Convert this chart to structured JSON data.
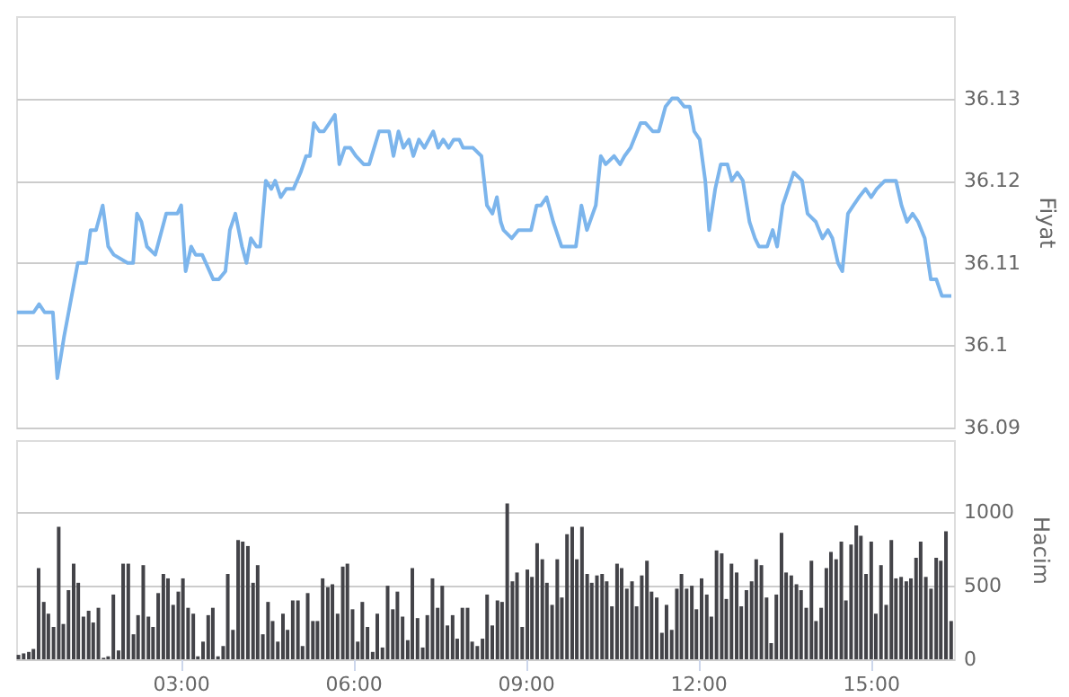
{
  "chart_data": [
    {
      "type": "line",
      "ylabel": "Fiyat",
      "xlim": [
        0.14,
        16.45
      ],
      "ylim": [
        36.09,
        36.14
      ],
      "yticks": [
        36.09,
        36.1,
        36.11,
        36.12,
        36.13
      ],
      "grid": "y",
      "tick_labels": "y",
      "line_style": "solid",
      "marker": "none",
      "series": [
        {
          "color": "#7cb5ec",
          "x": [
            0.154,
            0.347,
            0.443,
            0.539,
            0.635,
            0.779,
            0.856,
            0.972,
            1.212,
            1.356,
            1.433,
            1.529,
            1.645,
            1.741,
            1.837,
            2.077,
            2.174,
            2.241,
            2.318,
            2.414,
            2.558,
            2.75,
            2.943,
            3.01,
            3.087,
            3.183,
            3.26,
            3.375,
            3.568,
            3.664,
            3.779,
            3.856,
            3.952,
            4.068,
            4.145,
            4.222,
            4.318,
            4.385,
            4.481,
            4.577,
            4.645,
            4.741,
            4.837,
            4.962,
            5.087,
            5.183,
            5.25,
            5.318,
            5.414,
            5.491,
            5.587,
            5.683,
            5.76,
            5.856,
            5.952,
            6.048,
            6.183,
            6.279,
            6.452,
            6.548,
            6.625,
            6.702,
            6.789,
            6.875,
            6.971,
            7.048,
            7.144,
            7.24,
            7.394,
            7.481,
            7.567,
            7.663,
            7.75,
            7.846,
            7.913,
            7.99,
            8.086,
            8.231,
            8.327,
            8.423,
            8.5,
            8.567,
            8.615,
            8.759,
            8.874,
            9.095,
            9.191,
            9.268,
            9.364,
            9.48,
            9.624,
            9.816,
            9.874,
            9.97,
            10.066,
            10.22,
            10.307,
            10.393,
            10.538,
            10.643,
            10.72,
            10.826,
            10.999,
            11.086,
            11.211,
            11.316,
            11.432,
            11.547,
            11.643,
            11.759,
            11.855,
            11.932,
            12.028,
            12.124,
            12.191,
            12.297,
            12.393,
            12.509,
            12.585,
            12.682,
            12.778,
            12.893,
            12.989,
            13.057,
            13.201,
            13.297,
            13.374,
            13.47,
            13.566,
            13.662,
            13.807,
            13.903,
            14.047,
            14.162,
            14.258,
            14.335,
            14.432,
            14.508,
            14.605,
            14.701,
            14.797,
            14.912,
            15.009,
            15.105,
            15.249,
            15.374,
            15.441,
            15.537,
            15.633,
            15.73,
            15.826,
            15.941,
            16.047,
            16.143,
            16.239,
            16.403
          ],
          "values": [
            36.104,
            36.104,
            36.104,
            36.105,
            36.104,
            36.104,
            36.096,
            36.101,
            36.11,
            36.11,
            36.114,
            36.114,
            36.117,
            36.112,
            36.111,
            36.11,
            36.11,
            36.116,
            36.115,
            36.112,
            36.111,
            36.116,
            36.116,
            36.117,
            36.109,
            36.112,
            36.111,
            36.111,
            36.108,
            36.108,
            36.109,
            36.114,
            36.116,
            36.112,
            36.11,
            36.113,
            36.112,
            36.112,
            36.12,
            36.119,
            36.12,
            36.118,
            36.119,
            36.119,
            36.121,
            36.123,
            36.123,
            36.127,
            36.126,
            36.126,
            36.127,
            36.128,
            36.122,
            36.124,
            36.124,
            36.123,
            36.122,
            36.122,
            36.126,
            36.126,
            36.126,
            36.123,
            36.126,
            36.124,
            36.125,
            36.123,
            36.125,
            36.124,
            36.126,
            36.124,
            36.125,
            36.124,
            36.125,
            36.125,
            36.124,
            36.124,
            36.124,
            36.123,
            36.117,
            36.116,
            36.118,
            36.115,
            36.114,
            36.113,
            36.114,
            36.114,
            36.117,
            36.117,
            36.118,
            36.115,
            36.112,
            36.112,
            36.112,
            36.117,
            36.114,
            36.117,
            36.123,
            36.122,
            36.123,
            36.122,
            36.123,
            36.124,
            36.127,
            36.127,
            36.126,
            36.126,
            36.129,
            36.13,
            36.13,
            36.129,
            36.129,
            36.126,
            36.125,
            36.12,
            36.114,
            36.119,
            36.122,
            36.122,
            36.12,
            36.121,
            36.12,
            36.115,
            36.113,
            36.112,
            36.112,
            36.114,
            36.112,
            36.117,
            36.119,
            36.121,
            36.12,
            36.116,
            36.115,
            36.113,
            36.114,
            36.113,
            36.11,
            36.109,
            36.116,
            36.117,
            36.118,
            36.119,
            36.118,
            36.119,
            36.12,
            36.12,
            36.12,
            36.117,
            36.115,
            36.116,
            36.115,
            36.113,
            36.108,
            36.108,
            36.106,
            36.106
          ]
        }
      ]
    },
    {
      "type": "bar",
      "ylabel": "Hacim",
      "xlim": [
        0.14,
        16.45
      ],
      "ylim": [
        0,
        1490
      ],
      "yticks": [
        0,
        500,
        1000
      ],
      "grid": "y",
      "xticks": [
        {
          "value": 3,
          "label": "03:00"
        },
        {
          "value": 6,
          "label": "06:00"
        },
        {
          "value": 9,
          "label": "09:00"
        },
        {
          "value": 12,
          "label": "12:00"
        },
        {
          "value": 15,
          "label": "15:00"
        }
      ],
      "series": [
        {
          "color": "#434348",
          "x": [
            0.18,
            0.27,
            0.36,
            0.44,
            0.53,
            0.62,
            0.7,
            0.79,
            0.88,
            0.96,
            1.05,
            1.14,
            1.22,
            1.31,
            1.4,
            1.48,
            1.57,
            1.66,
            1.74,
            1.83,
            1.92,
            2.0,
            2.09,
            2.18,
            2.26,
            2.35,
            2.44,
            2.52,
            2.61,
            2.7,
            2.78,
            2.87,
            2.96,
            3.04,
            3.13,
            3.22,
            3.3,
            3.39,
            3.48,
            3.56,
            3.65,
            3.74,
            3.82,
            3.91,
            4.0,
            4.08,
            4.17,
            4.26,
            4.34,
            4.43,
            4.52,
            4.6,
            4.69,
            4.78,
            4.86,
            4.95,
            5.04,
            5.12,
            5.21,
            5.3,
            5.38,
            5.47,
            5.56,
            5.64,
            5.73,
            5.82,
            5.9,
            5.99,
            6.08,
            6.16,
            6.25,
            6.34,
            6.42,
            6.51,
            6.6,
            6.69,
            6.77,
            6.86,
            6.95,
            7.03,
            7.12,
            7.21,
            7.29,
            7.38,
            7.47,
            7.55,
            7.64,
            7.73,
            7.81,
            7.9,
            7.99,
            8.07,
            8.16,
            8.25,
            8.33,
            8.42,
            8.51,
            8.59,
            8.68,
            8.77,
            8.85,
            8.94,
            9.03,
            9.11,
            9.2,
            9.29,
            9.37,
            9.46,
            9.55,
            9.63,
            9.72,
            9.81,
            9.89,
            9.98,
            10.07,
            10.15,
            10.24,
            10.33,
            10.41,
            10.5,
            10.59,
            10.67,
            10.76,
            10.85,
            10.93,
            11.02,
            11.11,
            11.19,
            11.28,
            11.37,
            11.45,
            11.54,
            11.63,
            11.71,
            11.8,
            11.89,
            11.97,
            12.06,
            12.15,
            12.23,
            12.32,
            12.41,
            12.49,
            12.58,
            12.67,
            12.75,
            12.84,
            12.93,
            13.01,
            13.1,
            13.19,
            13.27,
            13.36,
            13.45,
            13.53,
            13.62,
            13.71,
            13.79,
            13.88,
            13.97,
            14.05,
            14.14,
            14.23,
            14.31,
            14.4,
            14.49,
            14.57,
            14.66,
            14.75,
            14.83,
            14.92,
            15.01,
            15.09,
            15.18,
            15.27,
            15.36,
            15.44,
            15.53,
            15.62,
            15.7,
            15.79,
            15.87,
            15.96,
            16.05,
            16.14,
            16.22,
            16.31,
            16.4
          ],
          "values": [
            30,
            40,
            50,
            70,
            620,
            390,
            310,
            220,
            900,
            240,
            470,
            650,
            520,
            290,
            330,
            250,
            350,
            10,
            20,
            440,
            60,
            650,
            650,
            170,
            300,
            640,
            290,
            220,
            450,
            580,
            550,
            370,
            460,
            550,
            350,
            310,
            20,
            120,
            300,
            350,
            20,
            90,
            580,
            200,
            810,
            800,
            770,
            520,
            640,
            170,
            390,
            260,
            120,
            310,
            200,
            400,
            400,
            90,
            450,
            260,
            260,
            550,
            490,
            510,
            310,
            630,
            650,
            340,
            120,
            390,
            220,
            50,
            310,
            80,
            500,
            340,
            460,
            290,
            130,
            620,
            280,
            80,
            300,
            550,
            350,
            500,
            230,
            300,
            140,
            350,
            350,
            120,
            90,
            140,
            440,
            230,
            400,
            390,
            1060,
            530,
            590,
            220,
            610,
            560,
            790,
            680,
            520,
            370,
            680,
            420,
            850,
            900,
            680,
            900,
            580,
            520,
            570,
            580,
            530,
            360,
            650,
            620,
            480,
            530,
            360,
            570,
            670,
            460,
            420,
            180,
            370,
            200,
            480,
            580,
            480,
            500,
            340,
            550,
            440,
            290,
            740,
            720,
            410,
            650,
            590,
            360,
            470,
            530,
            680,
            640,
            420,
            110,
            440,
            860,
            590,
            570,
            510,
            470,
            350,
            670,
            260,
            350,
            620,
            730,
            680,
            800,
            400,
            780,
            910,
            840,
            580,
            800,
            310,
            640,
            370,
            810,
            550,
            560,
            530,
            550,
            690,
            800,
            560,
            480,
            690,
            670,
            870,
            260
          ]
        }
      ]
    }
  ]
}
